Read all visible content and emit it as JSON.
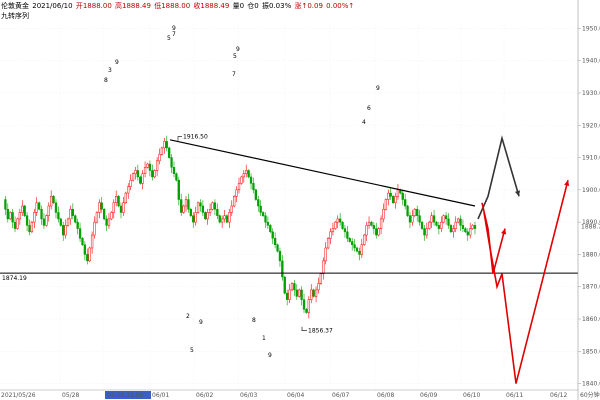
{
  "header": {
    "symbol": "伦敦黄金",
    "date": "2021/06/10",
    "open": "开1888.00",
    "high": "高1888.49",
    "low": "低1888.00",
    "close": "收1888.49",
    "volume": "量0",
    "oi": "仓0",
    "amplitude": "振0.03%",
    "change": "涨↑0.09",
    "change_pct": "0.00%↑",
    "indicator": "九转序列"
  },
  "colors": {
    "up": "#ff0000",
    "down": "#00a000",
    "cursor_tag": "#3a5fcd",
    "seq_magenta": "#cc00cc",
    "seq_green": "#00aa00",
    "price_tag": "#c00000"
  },
  "chart_data": {
    "type": "candlestick",
    "y_ticks": [
      "1950.00",
      "1940.00",
      "1930.00",
      "1920.00",
      "1910.00",
      "1900.00",
      "1890.00",
      "1880.00",
      "1870.00",
      "1860.00",
      "1850.00",
      "1840.00"
    ],
    "ylim": [
      1838,
      1952
    ],
    "x_ticks": [
      "2021/05/26",
      "05/28",
      "05/28,23:00",
      "06/01",
      "06/02",
      "06/03",
      "06/04",
      "06/07",
      "06/08",
      "06/09",
      "06/10",
      "06/11",
      "06/12",
      "60分钟"
    ],
    "cursor_time": "05/28,23:00",
    "current_price": "1888.72",
    "horizontal_level": "1874.19",
    "annotations": {
      "high": "1916.50",
      "low": "1856.37"
    },
    "series_close": [
      1897,
      1894,
      1891,
      1893,
      1890,
      1888,
      1891,
      1893,
      1895,
      1892,
      1889,
      1887,
      1890,
      1893,
      1896,
      1894,
      1891,
      1889,
      1892,
      1895,
      1898,
      1896,
      1893,
      1891,
      1889,
      1886,
      1889,
      1891,
      1894,
      1892,
      1890,
      1888,
      1885,
      1883,
      1880,
      1878,
      1882,
      1886,
      1890,
      1893,
      1896,
      1894,
      1891,
      1889,
      1891,
      1893,
      1896,
      1898,
      1895,
      1893,
      1896,
      1899,
      1901,
      1903,
      1905,
      1906,
      1904,
      1902,
      1905,
      1907,
      1908,
      1906,
      1904,
      1906,
      1909,
      1911,
      1913,
      1915,
      1913,
      1910,
      1907,
      1905,
      1903,
      1897,
      1893,
      1895,
      1897,
      1894,
      1892,
      1890,
      1893,
      1896,
      1895,
      1893,
      1891,
      1893,
      1894,
      1896,
      1894,
      1892,
      1890,
      1891,
      1892,
      1890,
      1893,
      1895,
      1898,
      1900,
      1902,
      1904,
      1905,
      1906,
      1904,
      1902,
      1900,
      1897,
      1895,
      1893,
      1892,
      1890,
      1889,
      1887,
      1885,
      1883,
      1881,
      1878,
      1873,
      1868,
      1866,
      1869,
      1871,
      1869,
      1867,
      1869,
      1866,
      1863,
      1862,
      1866,
      1869,
      1867,
      1869,
      1871,
      1874,
      1878,
      1882,
      1885,
      1887,
      1888,
      1890,
      1891,
      1890,
      1888,
      1887,
      1885,
      1884,
      1883,
      1882,
      1881,
      1880,
      1883,
      1886,
      1889,
      1890,
      1889,
      1888,
      1886,
      1888,
      1891,
      1894,
      1897,
      1899,
      1898,
      1896,
      1898,
      1900,
      1899,
      1897,
      1895,
      1892,
      1890,
      1892,
      1894,
      1892,
      1890,
      1888,
      1886,
      1888,
      1890,
      1892,
      1890,
      1889,
      1888,
      1890,
      1892,
      1891,
      1889,
      1887,
      1888,
      1890,
      1891,
      1889,
      1888,
      1887,
      1886,
      1888,
      1889,
      1888
    ]
  },
  "sequence_labels": [
    {
      "t": "9",
      "c": "seq_green"
    },
    {
      "t": "5",
      "c": "seq_magenta"
    },
    {
      "t": "7",
      "c": "seq_magenta"
    },
    {
      "t": "9",
      "c": "seq_magenta"
    },
    {
      "t": "3",
      "c": "seq_magenta"
    },
    {
      "t": "8",
      "c": "seq_magenta"
    },
    {
      "t": "9",
      "c": "seq_green"
    },
    {
      "t": "5",
      "c": "seq_magenta"
    },
    {
      "t": "7",
      "c": "seq_magenta"
    },
    {
      "t": "9",
      "c": "seq_green"
    },
    {
      "t": "6",
      "c": "seq_magenta"
    },
    {
      "t": "4",
      "c": "seq_magenta"
    },
    {
      "t": "9",
      "c": "seq_green"
    },
    {
      "t": "2",
      "c": "seq_magenta"
    },
    {
      "t": "5",
      "c": "seq_magenta"
    },
    {
      "t": "8",
      "c": "seq_magenta"
    },
    {
      "t": "1",
      "c": "seq_magenta"
    },
    {
      "t": "9",
      "c": "seq_green"
    }
  ]
}
